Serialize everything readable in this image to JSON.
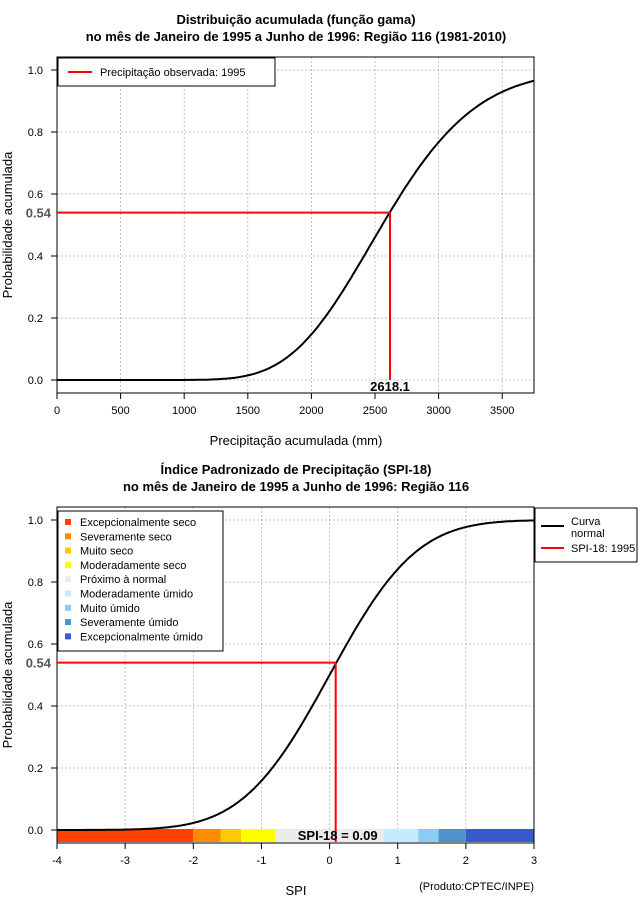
{
  "chart_data": [
    {
      "type": "line",
      "title_line1": "Distribuição acumulada (função gama)",
      "title_line2": "no mês de Janeiro de 1995 a Junho de 1996: Região 116 (1981-2010)",
      "xlabel": "Precipitação acumulada (mm)",
      "ylabel": "Probabilidade acumulada",
      "xlim": [
        0,
        3750
      ],
      "ylim": [
        0,
        1
      ],
      "xticks": [
        0,
        500,
        1000,
        1500,
        2000,
        2500,
        3000,
        3500
      ],
      "yticks": [
        "0.0",
        "0.2",
        "0.4",
        "0.6",
        "0.8",
        "1.0"
      ],
      "legend": [
        {
          "label": "Precipitação observada: 1995",
          "color": "#ff0000"
        }
      ],
      "gamma": {
        "shape": 20,
        "scale": 130
      },
      "observed": {
        "x": 2618.1,
        "x_label": "2618.1",
        "y": 0.54,
        "y_label": "0.54"
      },
      "curve_color": "#000000",
      "marker_color": "#ff0000"
    },
    {
      "type": "line",
      "title_line1": "Índice Padronizado de Precipitação (SPI-18)",
      "title_line2": "no mês de Janeiro de 1995 a Junho de 1996: Região 116",
      "xlabel": "SPI",
      "ylabel": "Probabilidade acumulada",
      "xlim": [
        -4,
        3
      ],
      "ylim": [
        0,
        1
      ],
      "xticks": [
        -4,
        -3,
        -2,
        -1,
        0,
        1,
        2,
        3
      ],
      "yticks": [
        "0.0",
        "0.2",
        "0.4",
        "0.6",
        "0.8",
        "1.0"
      ],
      "observed": {
        "x": 0.09,
        "y": 0.54,
        "y_label": "0.54",
        "spi_label": "SPI-18 = 0.09"
      },
      "legend_right": [
        {
          "label_line1": "Curva",
          "label_line2": "normal",
          "color": "#000000"
        },
        {
          "label_line1": "SPI-18: 1995",
          "label_line2": "",
          "color": "#ff0000"
        }
      ],
      "categories": [
        {
          "label": "Excepcionalmente seco",
          "color": "#ff4000"
        },
        {
          "label": "Severamente seco",
          "color": "#ff8c00"
        },
        {
          "label": "Muito seco",
          "color": "#ffc800"
        },
        {
          "label": "Moderadamente seco",
          "color": "#ffff00"
        },
        {
          "label": "Próximo à normal",
          "color": "#ebebeb"
        },
        {
          "label": "Moderadamente úmido",
          "color": "#c4ecfa"
        },
        {
          "label": "Muito úmido",
          "color": "#8ccdf5"
        },
        {
          "label": "Severamente úmido",
          "color": "#4b94cb"
        },
        {
          "label": "Excepcionalmente úmido",
          "color": "#3859d0"
        }
      ],
      "color_bar": [
        {
          "from": -4,
          "to": -2,
          "color": "#ff4000"
        },
        {
          "from": -2,
          "to": -1.6,
          "color": "#ff8c00"
        },
        {
          "from": -1.6,
          "to": -1.3,
          "color": "#ffc800"
        },
        {
          "from": -1.3,
          "to": -0.8,
          "color": "#ffff00"
        },
        {
          "from": -0.8,
          "to": 0.8,
          "color": "#ebebeb"
        },
        {
          "from": 0.8,
          "to": 1.3,
          "color": "#c4ecfa"
        },
        {
          "from": 1.3,
          "to": 1.6,
          "color": "#8ccdf5"
        },
        {
          "from": 1.6,
          "to": 2,
          "color": "#4b94cb"
        },
        {
          "from": 2,
          "to": 3,
          "color": "#3859d0"
        }
      ]
    }
  ],
  "footer": "(Produto:CPTEC/INPE)"
}
